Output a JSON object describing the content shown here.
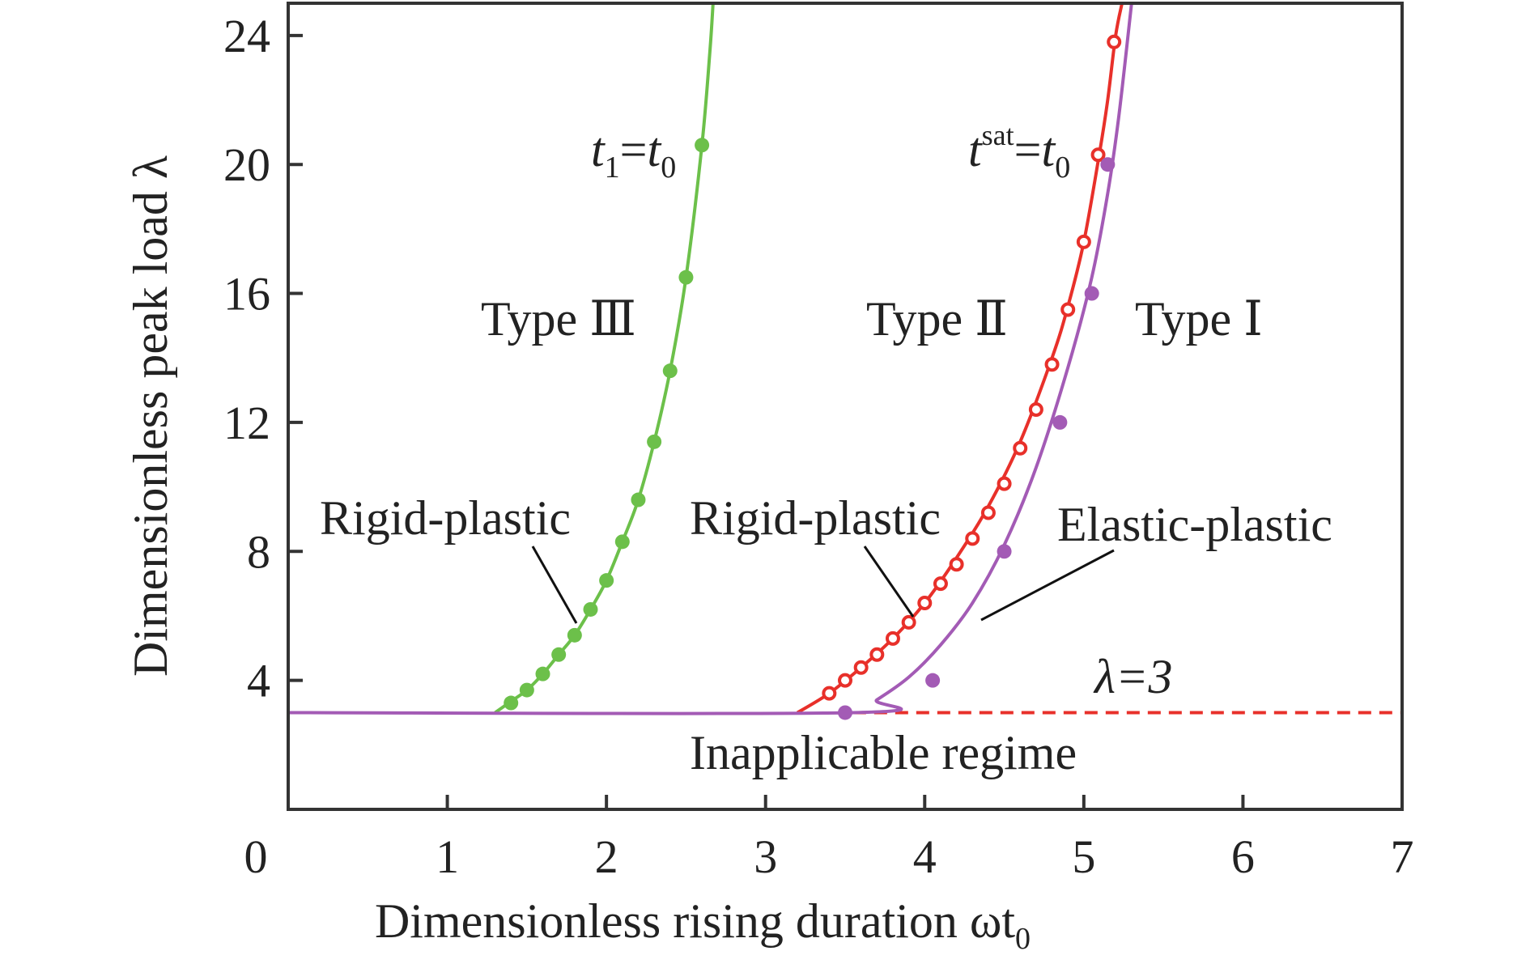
{
  "chart_data": {
    "type": "line",
    "xlabel": "Dimensionless rising duration ωt",
    "xlabel_sub": "0",
    "ylabel": "Dimensionless peak load λ",
    "xlim": [
      0,
      7
    ],
    "ylim": [
      0,
      25
    ],
    "x_ticks": [
      "0",
      "1",
      "2",
      "3",
      "4",
      "5",
      "6",
      "7"
    ],
    "y_ticks": [
      "4",
      "8",
      "12",
      "16",
      "20",
      "24"
    ],
    "x_tick_values": [
      0,
      1,
      2,
      3,
      4,
      5,
      6,
      7
    ],
    "y_tick_values": [
      4,
      8,
      12,
      16,
      20,
      24
    ],
    "grid": false,
    "colors": {
      "green": "#6cc04a",
      "red": "#e8302a",
      "purple": "#a35bb5",
      "axis": "#333333",
      "leader": "#111111"
    },
    "series": [
      {
        "color": "green",
        "curve": [
          [
            1.3,
            3.0
          ],
          [
            1.4,
            3.35
          ],
          [
            1.5,
            3.7
          ],
          [
            1.6,
            4.2
          ],
          [
            1.7,
            4.8
          ],
          [
            1.8,
            5.4
          ],
          [
            1.9,
            6.2
          ],
          [
            2.0,
            7.1
          ],
          [
            2.1,
            8.3
          ],
          [
            2.2,
            9.6
          ],
          [
            2.3,
            11.4
          ],
          [
            2.4,
            13.6
          ],
          [
            2.5,
            16.5
          ],
          [
            2.6,
            20.6
          ],
          [
            2.65,
            23.5
          ],
          [
            2.67,
            25.0
          ]
        ],
        "markers": [
          [
            1.4,
            3.3
          ],
          [
            1.5,
            3.7
          ],
          [
            1.6,
            4.2
          ],
          [
            1.7,
            4.8
          ],
          [
            1.8,
            5.4
          ],
          [
            1.9,
            6.2
          ],
          [
            2.0,
            7.1
          ],
          [
            2.1,
            8.3
          ],
          [
            2.2,
            9.6
          ],
          [
            2.3,
            11.4
          ],
          [
            2.4,
            13.6
          ],
          [
            2.5,
            16.5
          ],
          [
            2.6,
            20.6
          ]
        ],
        "marker_style": "filled"
      },
      {
        "color": "red",
        "curve": [
          [
            3.2,
            3.0
          ],
          [
            3.4,
            3.6
          ],
          [
            3.6,
            4.4
          ],
          [
            3.8,
            5.3
          ],
          [
            4.0,
            6.4
          ],
          [
            4.2,
            7.8
          ],
          [
            4.4,
            9.4
          ],
          [
            4.6,
            11.4
          ],
          [
            4.8,
            14.0
          ],
          [
            4.9,
            15.6
          ],
          [
            5.0,
            17.6
          ],
          [
            5.1,
            20.4
          ],
          [
            5.15,
            22.0
          ],
          [
            5.2,
            24.0
          ],
          [
            5.24,
            25.0
          ]
        ],
        "markers": [
          [
            3.4,
            3.6
          ],
          [
            3.5,
            4.0
          ],
          [
            3.6,
            4.4
          ],
          [
            3.7,
            4.8
          ],
          [
            3.8,
            5.3
          ],
          [
            3.9,
            5.8
          ],
          [
            4.0,
            6.4
          ],
          [
            4.1,
            7.0
          ],
          [
            4.2,
            7.6
          ],
          [
            4.3,
            8.4
          ],
          [
            4.4,
            9.2
          ],
          [
            4.5,
            10.1
          ],
          [
            4.6,
            11.2
          ],
          [
            4.7,
            12.4
          ],
          [
            4.8,
            13.8
          ],
          [
            4.9,
            15.5
          ],
          [
            5.0,
            17.6
          ],
          [
            5.09,
            20.3
          ],
          [
            5.19,
            23.8
          ]
        ],
        "marker_style": "open"
      },
      {
        "color": "purple",
        "curve": [
          [
            0.0,
            3.0
          ],
          [
            3.55,
            3.0
          ],
          [
            3.7,
            3.4
          ],
          [
            3.9,
            4.1
          ],
          [
            4.1,
            5.1
          ],
          [
            4.3,
            6.4
          ],
          [
            4.5,
            8.2
          ],
          [
            4.7,
            10.6
          ],
          [
            4.9,
            13.7
          ],
          [
            5.05,
            16.5
          ],
          [
            5.15,
            19.1
          ],
          [
            5.22,
            21.5
          ],
          [
            5.3,
            25.0
          ]
        ],
        "markers": [
          [
            3.5,
            3.0
          ],
          [
            4.05,
            4.0
          ],
          [
            4.5,
            8.0
          ],
          [
            4.85,
            12.0
          ],
          [
            5.05,
            16.0
          ],
          [
            5.15,
            20.0
          ]
        ],
        "marker_style": "filled"
      }
    ],
    "dashed_line": {
      "color": "red",
      "y": 3,
      "x_from": 3.55,
      "x_to": 7.0
    },
    "annotations": {
      "t1": {
        "t": "t",
        "sub1": "1",
        "eq": "=",
        "sub2": "0"
      },
      "tsat": {
        "t": "t",
        "sup": "sat",
        "eq": "=",
        "sub2": "0"
      },
      "type3": "Type Ⅲ",
      "type2": "Type Ⅱ",
      "type1": "Type Ⅰ",
      "rigid_plastic_left": "Rigid-plastic",
      "rigid_plastic_mid": "Rigid-plastic",
      "elastic_plastic": "Elastic-plastic",
      "lambda3": "λ=3",
      "inapplicable": "Inapplicable regime"
    }
  }
}
